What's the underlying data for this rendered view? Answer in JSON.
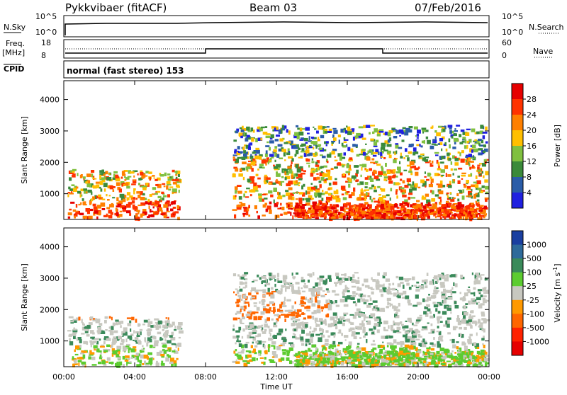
{
  "header": {
    "station": "Pykkvibaer (fitACF)",
    "beam": "Beam 03",
    "date": "07/Feb/2016"
  },
  "top_panels": {
    "nsky_label": "N.Sky",
    "nsky_ticks": [
      "10^5",
      "10^0"
    ],
    "nsearch_ticks": [
      "10^5",
      "10^0"
    ],
    "nsearch_label": "N.Search",
    "freq_label_1": "Freq.",
    "freq_label_2": "[MHz]",
    "freq_ticks": [
      "18",
      "8"
    ],
    "nave_ticks": [
      "60",
      "0"
    ],
    "nave_label": "Nave",
    "cpid_label": "CPID",
    "cpid_text": "normal (fast stereo) 153"
  },
  "chart_data": [
    {
      "type": "heatmap",
      "name": "power",
      "xlabel": "Time UT",
      "ylabel": "Slant Range [km]",
      "y_ticks": [
        "1000",
        "2000",
        "3000",
        "4000"
      ],
      "xlim": [
        0,
        24
      ],
      "ylim": [
        180,
        4600
      ],
      "colorbar_label": "Power [dB]",
      "colorbar_ticks": [
        "28",
        "24",
        "20",
        "16",
        "12",
        "8",
        "4"
      ],
      "colors": [
        "#e60000",
        "#ff3300",
        "#ff8000",
        "#ffbf00",
        "#80c040",
        "#3a8a3a",
        "#2a5ca8",
        "#2020e0"
      ]
    },
    {
      "type": "heatmap",
      "name": "velocity",
      "xlabel": "Time UT",
      "ylabel": "Slant Range [km]",
      "y_ticks": [
        "1000",
        "2000",
        "3000",
        "4000"
      ],
      "xlim": [
        0,
        24
      ],
      "ylim": [
        180,
        4600
      ],
      "colorbar_label": "Velocity [m s",
      "colorbar_label_sup": "-1",
      "colorbar_label_end": "]",
      "colorbar_ticks": [
        "1000",
        "500",
        "100",
        "25",
        "-25",
        "-100",
        "-500",
        "-1000"
      ],
      "colors": [
        "#1a3fa0",
        "#2e6a9a",
        "#3a8a5a",
        "#5ccc30",
        "#c8c8c0",
        "#ff9900",
        "#ff6600",
        "#ff2200",
        "#e60000"
      ]
    }
  ],
  "x_ticks": [
    "00:00",
    "04:00",
    "08:00",
    "12:00",
    "16:00",
    "20:00",
    "00:00"
  ]
}
